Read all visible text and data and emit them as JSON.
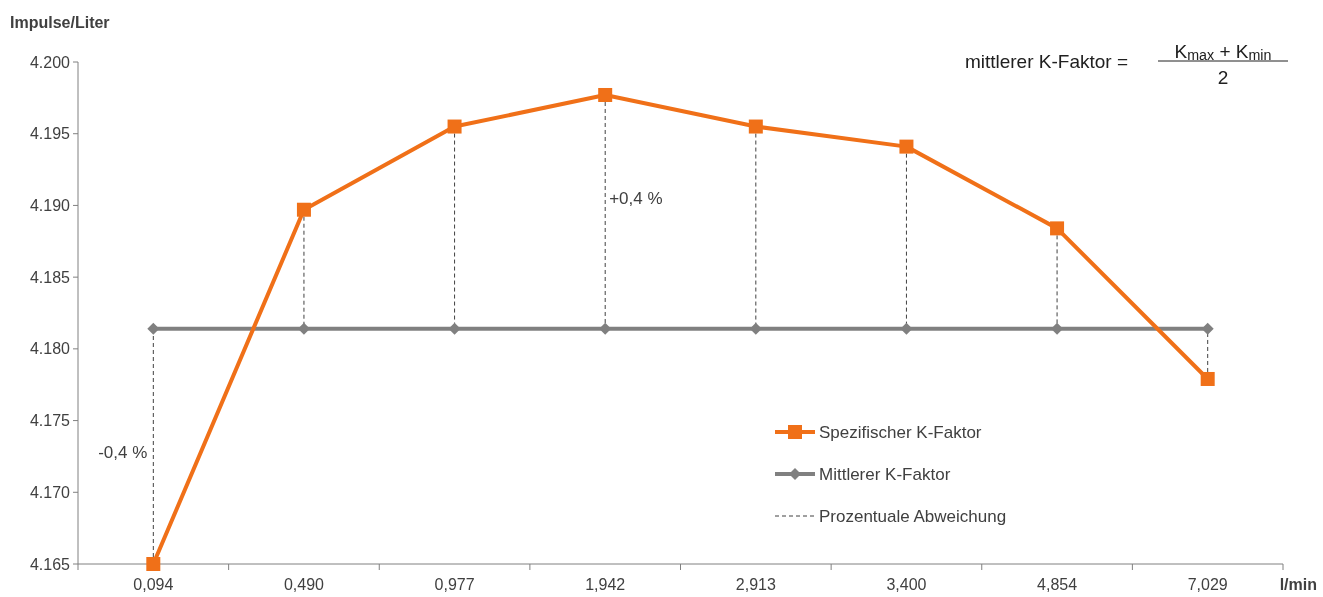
{
  "chart_data": {
    "type": "line",
    "ylabel": "Impulse/Liter",
    "xlabel": "l/min",
    "categories": [
      "0,094",
      "0,490",
      "0,977",
      "1,942",
      "2,913",
      "3,400",
      "4,854",
      "7,029"
    ],
    "series": [
      {
        "name": "Spezifischer K-Faktor",
        "color": "#f07018",
        "marker": "square",
        "values": [
          4165,
          4189.7,
          4195.5,
          4197.7,
          4195.5,
          4194.1,
          4188.4,
          4177.9
        ]
      },
      {
        "name": "Mittlerer K-Faktor",
        "color": "#808080",
        "marker": "diamond",
        "values": [
          4181.4,
          4181.4,
          4181.4,
          4181.4,
          4181.4,
          4181.4,
          4181.4,
          4181.4
        ]
      },
      {
        "name": "Prozentuale Abweichung",
        "color": "#404040",
        "marker": "none",
        "line_style": "dashed",
        "x": [
          "0,094",
          "0,094",
          "0,094",
          "0,490",
          "0,490",
          "0,490",
          "0,977",
          "0,977",
          "0,977",
          "1,942",
          "1,942",
          "1,942",
          "2,913",
          "2,913",
          "2,913",
          "3,400",
          "3,400",
          "3,400",
          "4,854",
          "4,854",
          "4,854",
          "7,029",
          "7,029",
          "7,029"
        ],
        "values": [
          4165,
          4181.4,
          null,
          4189.7,
          4181.4,
          null,
          4195.5,
          4181.4,
          null,
          4197.7,
          4181.4,
          null,
          4195.5,
          4181.4,
          null,
          4194.1,
          4181.4,
          null,
          4188.4,
          4181.4,
          null,
          4177.9,
          4181.4,
          null
        ]
      }
    ],
    "ylim": [
      4165,
      4200
    ],
    "yticks": [
      {
        "value": 4165,
        "label": "4.165"
      },
      {
        "value": 4170,
        "label": "4.170"
      },
      {
        "value": 4175,
        "label": "4.175"
      },
      {
        "value": 4180,
        "label": "4.180"
      },
      {
        "value": 4185,
        "label": "4.185"
      },
      {
        "value": 4190,
        "label": "4.190"
      },
      {
        "value": 4195,
        "label": "4.195"
      },
      {
        "value": 4200,
        "label": "4.200"
      }
    ],
    "grid": false,
    "legend": "bottom right",
    "annotations": [
      {
        "text": "+0,4 %",
        "x": "1,942",
        "y": 4190.5
      },
      {
        "text": "-0,4 %",
        "x": "0,094",
        "y": 4172.8
      },
      "mittlerer K-Faktor =",
      "K$_{max}$ + K$_{min}$",
      "2"
    ]
  }
}
